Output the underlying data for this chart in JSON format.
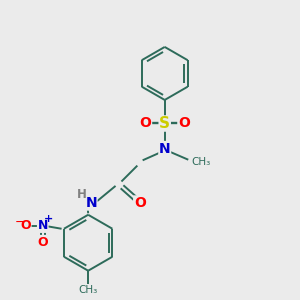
{
  "background_color": "#ebebeb",
  "bond_color": "#2d6b5a",
  "atom_colors": {
    "N": "#0000cc",
    "O": "#ff0000",
    "S": "#cccc00",
    "H": "#808080",
    "C": "#2d6b5a"
  }
}
